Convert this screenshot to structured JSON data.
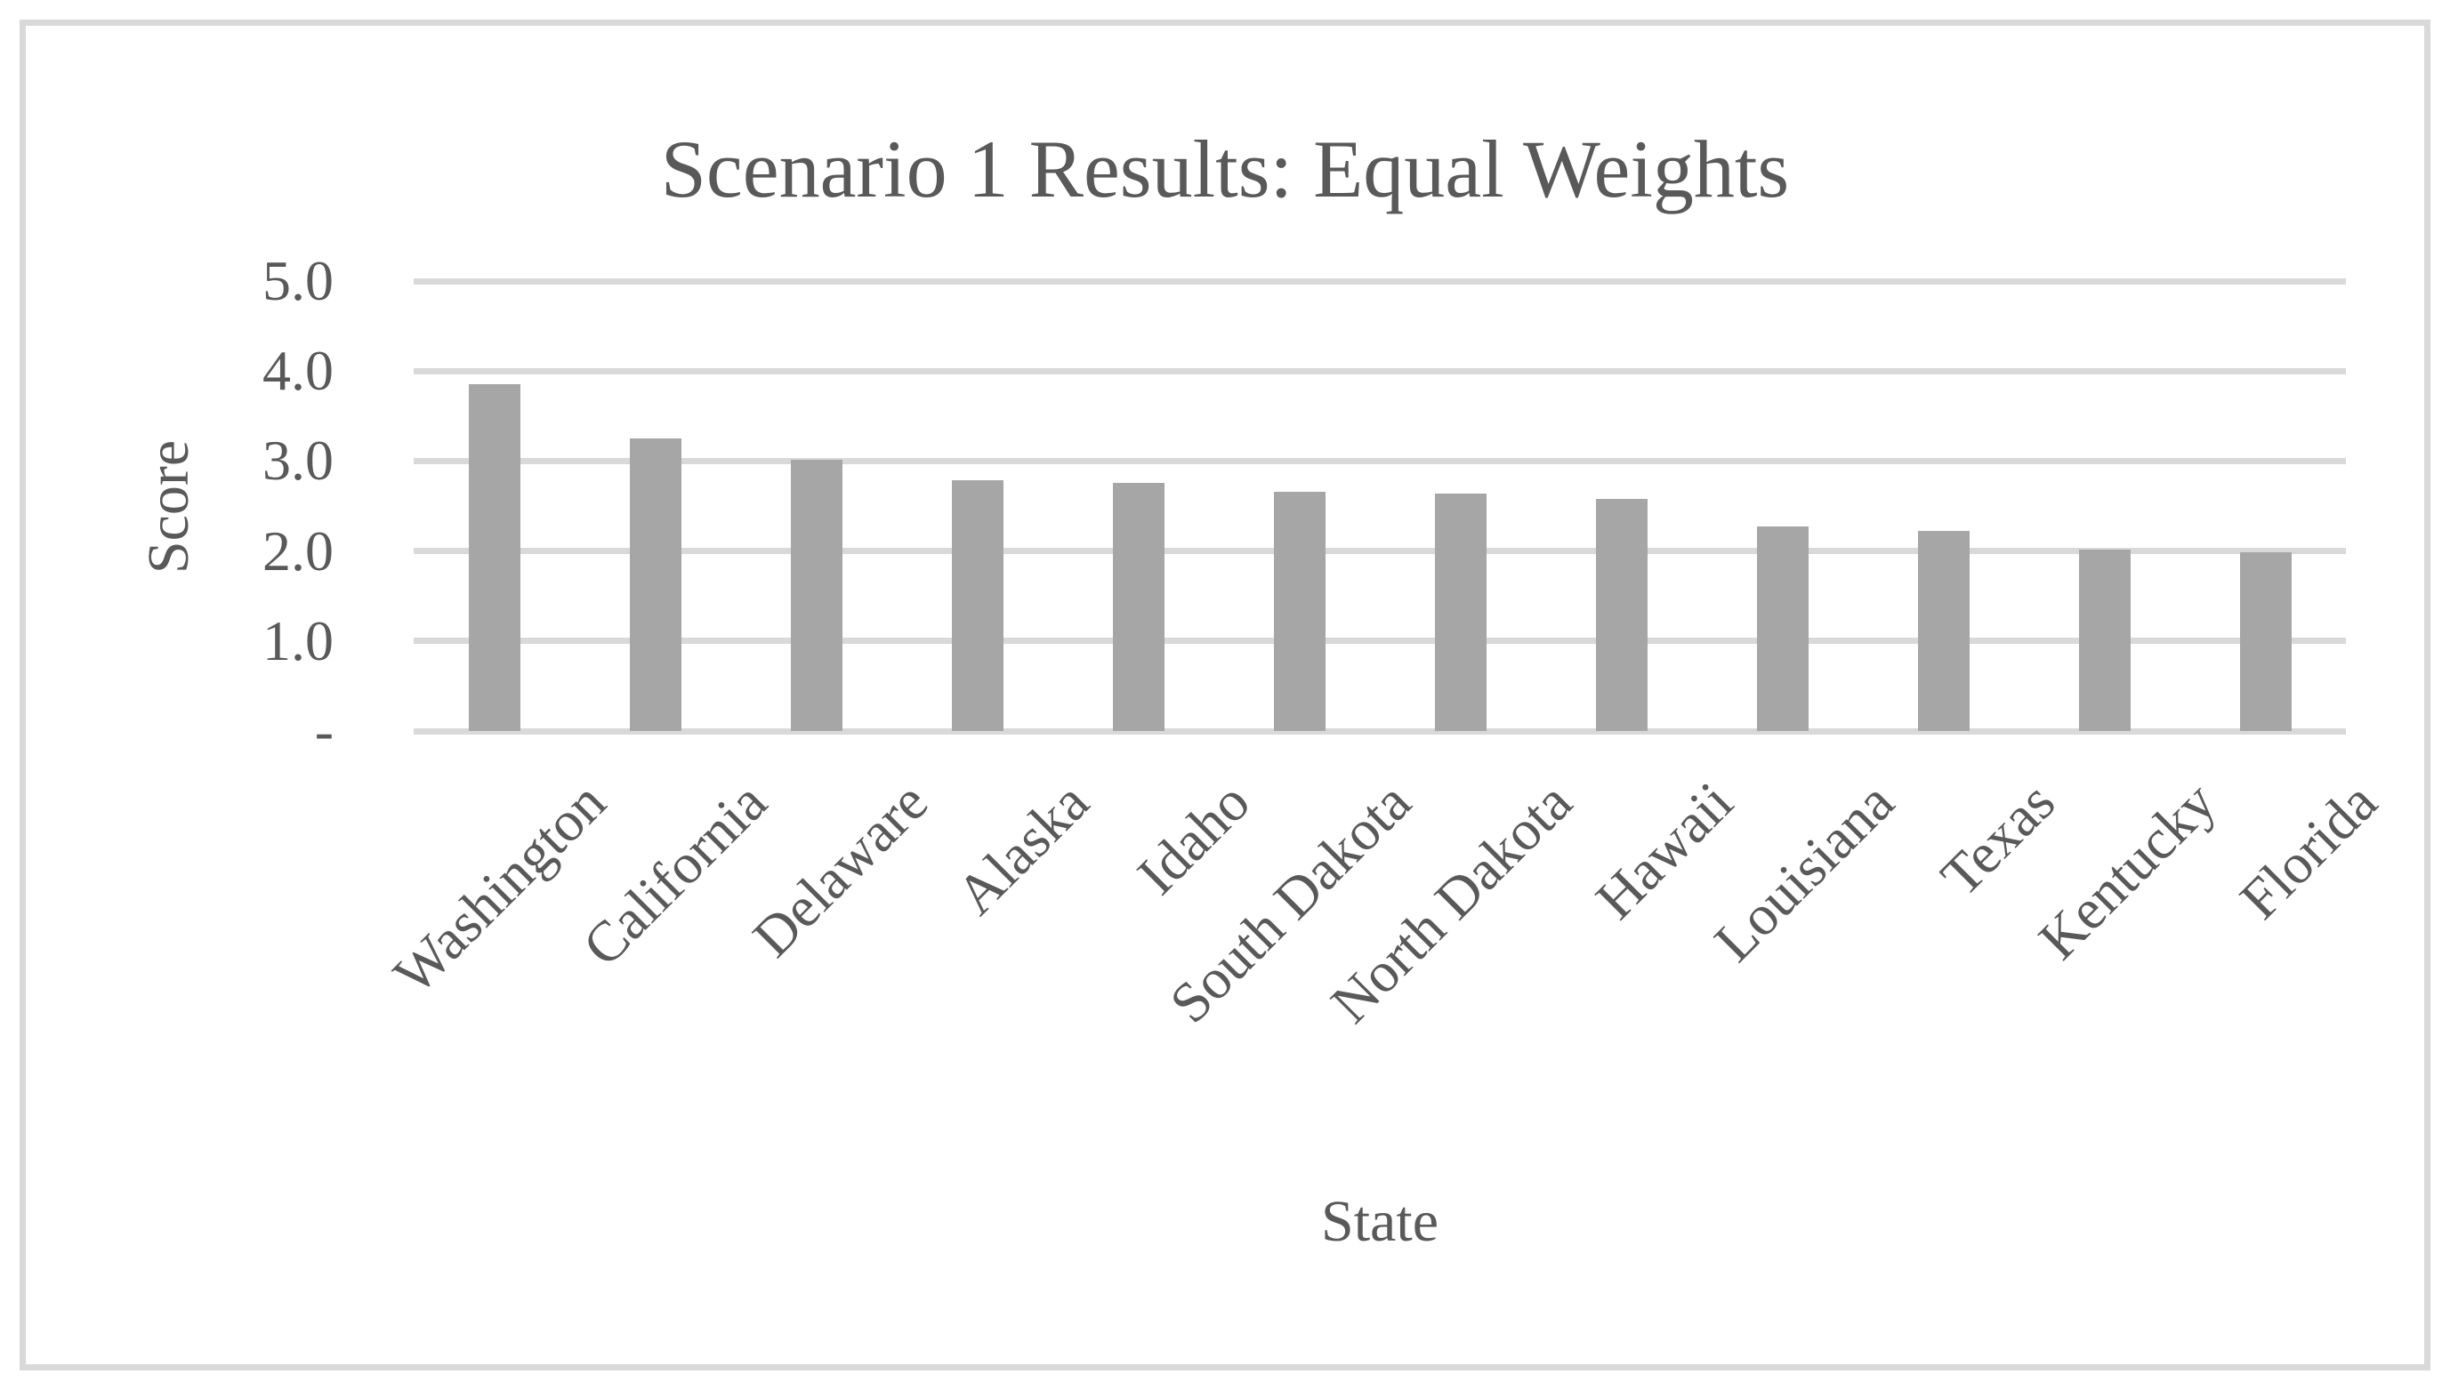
{
  "chart_data": {
    "type": "bar",
    "title": "Scenario 1 Results: Equal Weights",
    "xlabel": "State",
    "ylabel": "Score",
    "categories": [
      "Washington",
      "California",
      "Delaware",
      "Alaska",
      "Idaho",
      "South Dakota",
      "North Dakota",
      "Hawaii",
      "Louisiana",
      "Texas",
      "Kentucky",
      "Florida"
    ],
    "values": [
      3.85,
      3.25,
      3.01,
      2.79,
      2.76,
      2.66,
      2.64,
      2.58,
      2.27,
      2.22,
      2.02,
      1.99
    ],
    "ylim": [
      0,
      5
    ],
    "yticks": [
      {
        "value": 5,
        "label": "5.0"
      },
      {
        "value": 4,
        "label": "4.0"
      },
      {
        "value": 3,
        "label": "3.0"
      },
      {
        "value": 2,
        "label": "2.0"
      },
      {
        "value": 1,
        "label": "1.0"
      },
      {
        "value": 0,
        "label": "-"
      }
    ],
    "grid": "horizontal-gridlines",
    "legend_position": "none",
    "x_label_rotation_deg": 45,
    "colors": {
      "bar": "#a6a6a6",
      "gridline": "#d9d9d9",
      "text": "#595959",
      "frame_border": "#d9d9d9",
      "background": "#ffffff"
    }
  }
}
